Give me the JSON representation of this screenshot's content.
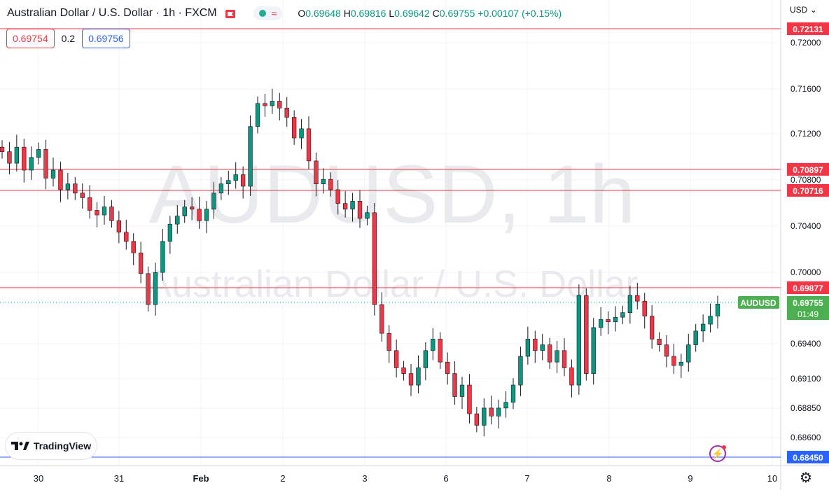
{
  "header": {
    "title": "Australian Dollar / U.S. Dollar · 1h · FXCM",
    "ohlc": {
      "o_label": "O",
      "o": "0.69648",
      "h_label": "H",
      "h": "0.69816",
      "l_label": "L",
      "l": "0.69642",
      "c_label": "C",
      "c": "0.69755",
      "change": "+0.00107 (+0.15%)"
    },
    "currency": "USD"
  },
  "bid_ask": {
    "bid": "0.69754",
    "spread": "0.2",
    "ask": "0.69756"
  },
  "brand": {
    "logo_text": "TradingView"
  },
  "colors": {
    "up": "#089981",
    "down": "#f23645",
    "level_line": "#f23645",
    "bottom_line": "#2962ff",
    "price_tag": "#4caf50"
  },
  "chart_data": {
    "type": "candlestick",
    "symbol": "AUDUSD",
    "interval": "1h",
    "watermark": {
      "line1": "AUDUSD, 1h",
      "line2": "Australian Dollar / U.S. Dollar"
    },
    "ylim": [
      0.6835,
      0.724
    ],
    "y_ticks": [
      "0.72000",
      "0.71600",
      "0.71200",
      "0.70800",
      "0.70400",
      "0.70000",
      "0.69400",
      "0.69100",
      "0.68850",
      "0.68600"
    ],
    "x_ticks": [
      "30",
      "31",
      "Feb",
      "2",
      "3",
      "6",
      "7",
      "8",
      "9",
      "10"
    ],
    "horizontal_levels": [
      {
        "value": 0.72131,
        "label": "0.72131"
      },
      {
        "value": 0.70897,
        "label": "0.70897"
      },
      {
        "value": 0.70716,
        "label": "0.70716"
      },
      {
        "value": 0.69877,
        "label": "0.69877"
      },
      {
        "value": 0.6845,
        "label": "0.68450"
      }
    ],
    "last_price": {
      "symbol_label": "AUDUSD",
      "value": 0.69755,
      "label": "0.69755",
      "countdown": "01:49"
    },
    "candle_path": [
      0.7108,
      0.7098,
      0.7112,
      0.7092,
      0.7103,
      0.711,
      0.7085,
      0.7092,
      0.7075,
      0.708,
      0.7072,
      0.7068,
      0.7057,
      0.7053,
      0.706,
      0.7048,
      0.7038,
      0.703,
      0.702,
      0.7002,
      0.6975,
      0.7003,
      0.703,
      0.7045,
      0.7052,
      0.706,
      0.7058,
      0.7048,
      0.7058,
      0.7072,
      0.708,
      0.7083,
      0.7088,
      0.7078,
      0.713,
      0.715,
      0.7148,
      0.7152,
      0.7146,
      0.7138,
      0.712,
      0.7128,
      0.71,
      0.708,
      0.7084,
      0.7075,
      0.7063,
      0.7058,
      0.7065,
      0.705,
      0.7055,
      0.6975,
      0.695,
      0.6935,
      0.692,
      0.6915,
      0.6905,
      0.692,
      0.6935,
      0.6945,
      0.6925,
      0.6915,
      0.6895,
      0.6905,
      0.688,
      0.687,
      0.6885,
      0.6878,
      0.6885,
      0.689,
      0.6905,
      0.693,
      0.6945,
      0.6935,
      0.694,
      0.6925,
      0.6935,
      0.692,
      0.6905,
      0.6983,
      0.6915,
      0.6955,
      0.6962,
      0.696,
      0.6964,
      0.6968,
      0.6983,
      0.6978,
      0.6965,
      0.6945,
      0.694,
      0.693,
      0.6922,
      0.6925,
      0.694,
      0.6952,
      0.6958,
      0.6965,
      0.69755
    ]
  }
}
